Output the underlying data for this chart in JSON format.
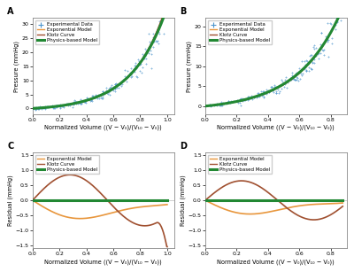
{
  "fig_width": 4.0,
  "fig_height": 3.07,
  "background_color": "#ffffff",
  "panel_bg": "#ffffff",
  "scatter_color": "#4d94cc",
  "exponential_color": "#e8963c",
  "klotz_color": "#a05030",
  "physics_color": "#228833",
  "physics_lw": 2.2,
  "model_lw": 1.0,
  "scatter_size": 3,
  "scatter_alpha": 0.65,
  "legend_fontsize": 4.0,
  "tick_fontsize": 4.5,
  "label_fontsize": 4.8,
  "panel_label_fontsize": 7,
  "xlabel_A": "Normalized Volume ((V − V₀)/(V₁₀ − V₀))",
  "xlabel_B": "Normalized Volume ((V − V₀)/(V₁₀ − V₀))",
  "xlabel_C": "Normalized Volume ((V − V₀)/(V₁₀ − V₀))",
  "xlabel_D": "Normalized Volume ((V − V₀)/(V₁₀ − V₀))",
  "ylabel_AB": "Pressure (mmHg)",
  "ylabel_CD": "Residual (mmHg)",
  "ylim_A": [
    -2,
    32
  ],
  "ylim_B": [
    -2,
    22
  ],
  "ylim_C": [
    -1.6,
    1.6
  ],
  "ylim_D": [
    -1.6,
    1.6
  ],
  "xlim_A": [
    0.0,
    1.05
  ],
  "xlim_B": [
    0.0,
    0.9
  ],
  "xlim_C": [
    0.0,
    1.05
  ],
  "xlim_D": [
    0.0,
    0.9
  ],
  "yticks_A": [
    0,
    5,
    10,
    15,
    20,
    25,
    30
  ],
  "yticks_B": [
    0,
    5,
    10,
    15,
    20
  ],
  "yticks_C": [
    -1.5,
    -1.0,
    -0.5,
    0.0,
    0.5,
    1.0,
    1.5
  ],
  "yticks_D": [
    -1.5,
    -1.0,
    -0.5,
    0.0,
    0.5,
    1.0,
    1.5
  ],
  "legend_entries_AB": [
    "Experimental Data",
    "Exponential Model",
    "Klotz Curve",
    "Physics-based Model"
  ],
  "legend_entries_CD": [
    "Exponential Model",
    "Klotz Curve",
    "Physics-based Model"
  ]
}
